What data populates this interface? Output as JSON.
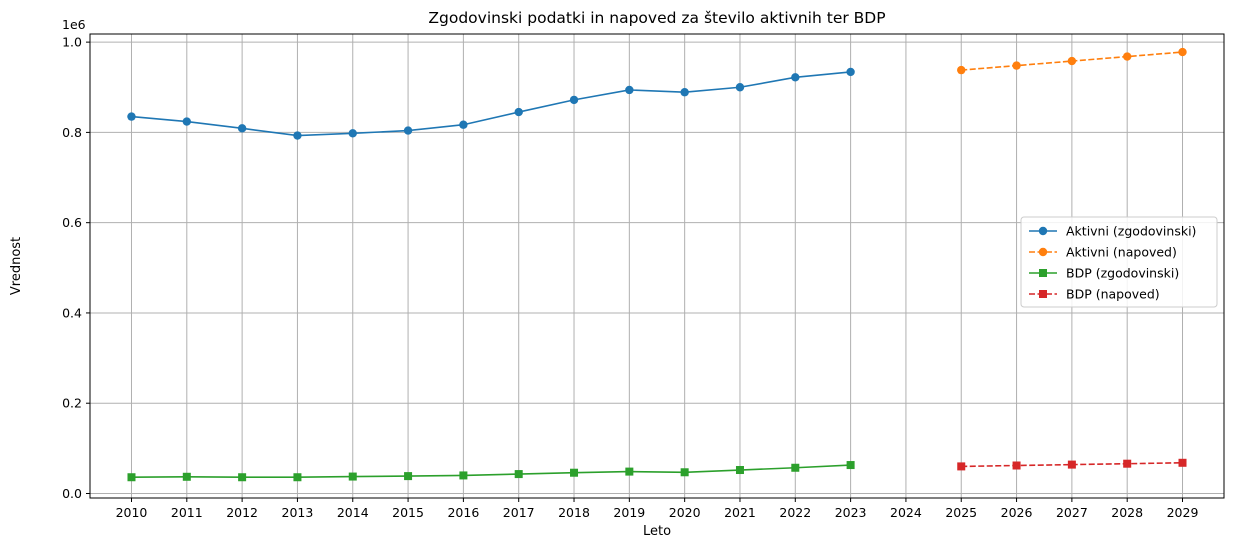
{
  "chart_data": {
    "type": "line",
    "title": "Zgodovinski podatki in napoved za število aktivnih ter BDP",
    "xlabel": "Leto",
    "ylabel": "Vrednost",
    "y_offset_label": "1e6",
    "x_ticks": [
      "2010",
      "2011",
      "2012",
      "2013",
      "2014",
      "2015",
      "2016",
      "2017",
      "2018",
      "2019",
      "2020",
      "2021",
      "2022",
      "2023",
      "2024",
      "2025",
      "2026",
      "2027",
      "2028",
      "2029"
    ],
    "y_ticks": [
      "0.0",
      "0.2",
      "0.4",
      "0.6",
      "0.8",
      "1.0"
    ],
    "xlim": [
      2009.25,
      2029.75
    ],
    "ylim": [
      -10000,
      1018000
    ],
    "grid": true,
    "legend_position": "center-right",
    "series": [
      {
        "name": "Aktivni (zgodovinski)",
        "color": "#1f77b4",
        "line_style": "solid",
        "marker": "circle",
        "x": [
          2010,
          2011,
          2012,
          2013,
          2014,
          2015,
          2016,
          2017,
          2018,
          2019,
          2020,
          2021,
          2022,
          2023
        ],
        "values": [
          835000,
          824000,
          809000,
          793000,
          798000,
          804000,
          817000,
          845000,
          872000,
          894000,
          889000,
          900000,
          922000,
          934000
        ]
      },
      {
        "name": "Aktivni (napoved)",
        "color": "#ff7f0e",
        "line_style": "dashed",
        "marker": "circle",
        "x": [
          2025,
          2026,
          2027,
          2028,
          2029
        ],
        "values": [
          938000,
          948000,
          958000,
          968000,
          978000
        ]
      },
      {
        "name": "BDP (zgodovinski)",
        "color": "#2ca02c",
        "line_style": "solid",
        "marker": "square",
        "x": [
          2010,
          2011,
          2012,
          2013,
          2014,
          2015,
          2016,
          2017,
          2018,
          2019,
          2020,
          2021,
          2022,
          2023
        ],
        "values": [
          36000,
          37000,
          36000,
          36000,
          37500,
          38500,
          40000,
          43000,
          46000,
          48500,
          47000,
          52000,
          57000,
          63000
        ]
      },
      {
        "name": "BDP (napoved)",
        "color": "#d62728",
        "line_style": "dashed",
        "marker": "square",
        "x": [
          2025,
          2026,
          2027,
          2028,
          2029
        ],
        "values": [
          60000,
          62000,
          64000,
          66000,
          68000
        ]
      }
    ]
  }
}
